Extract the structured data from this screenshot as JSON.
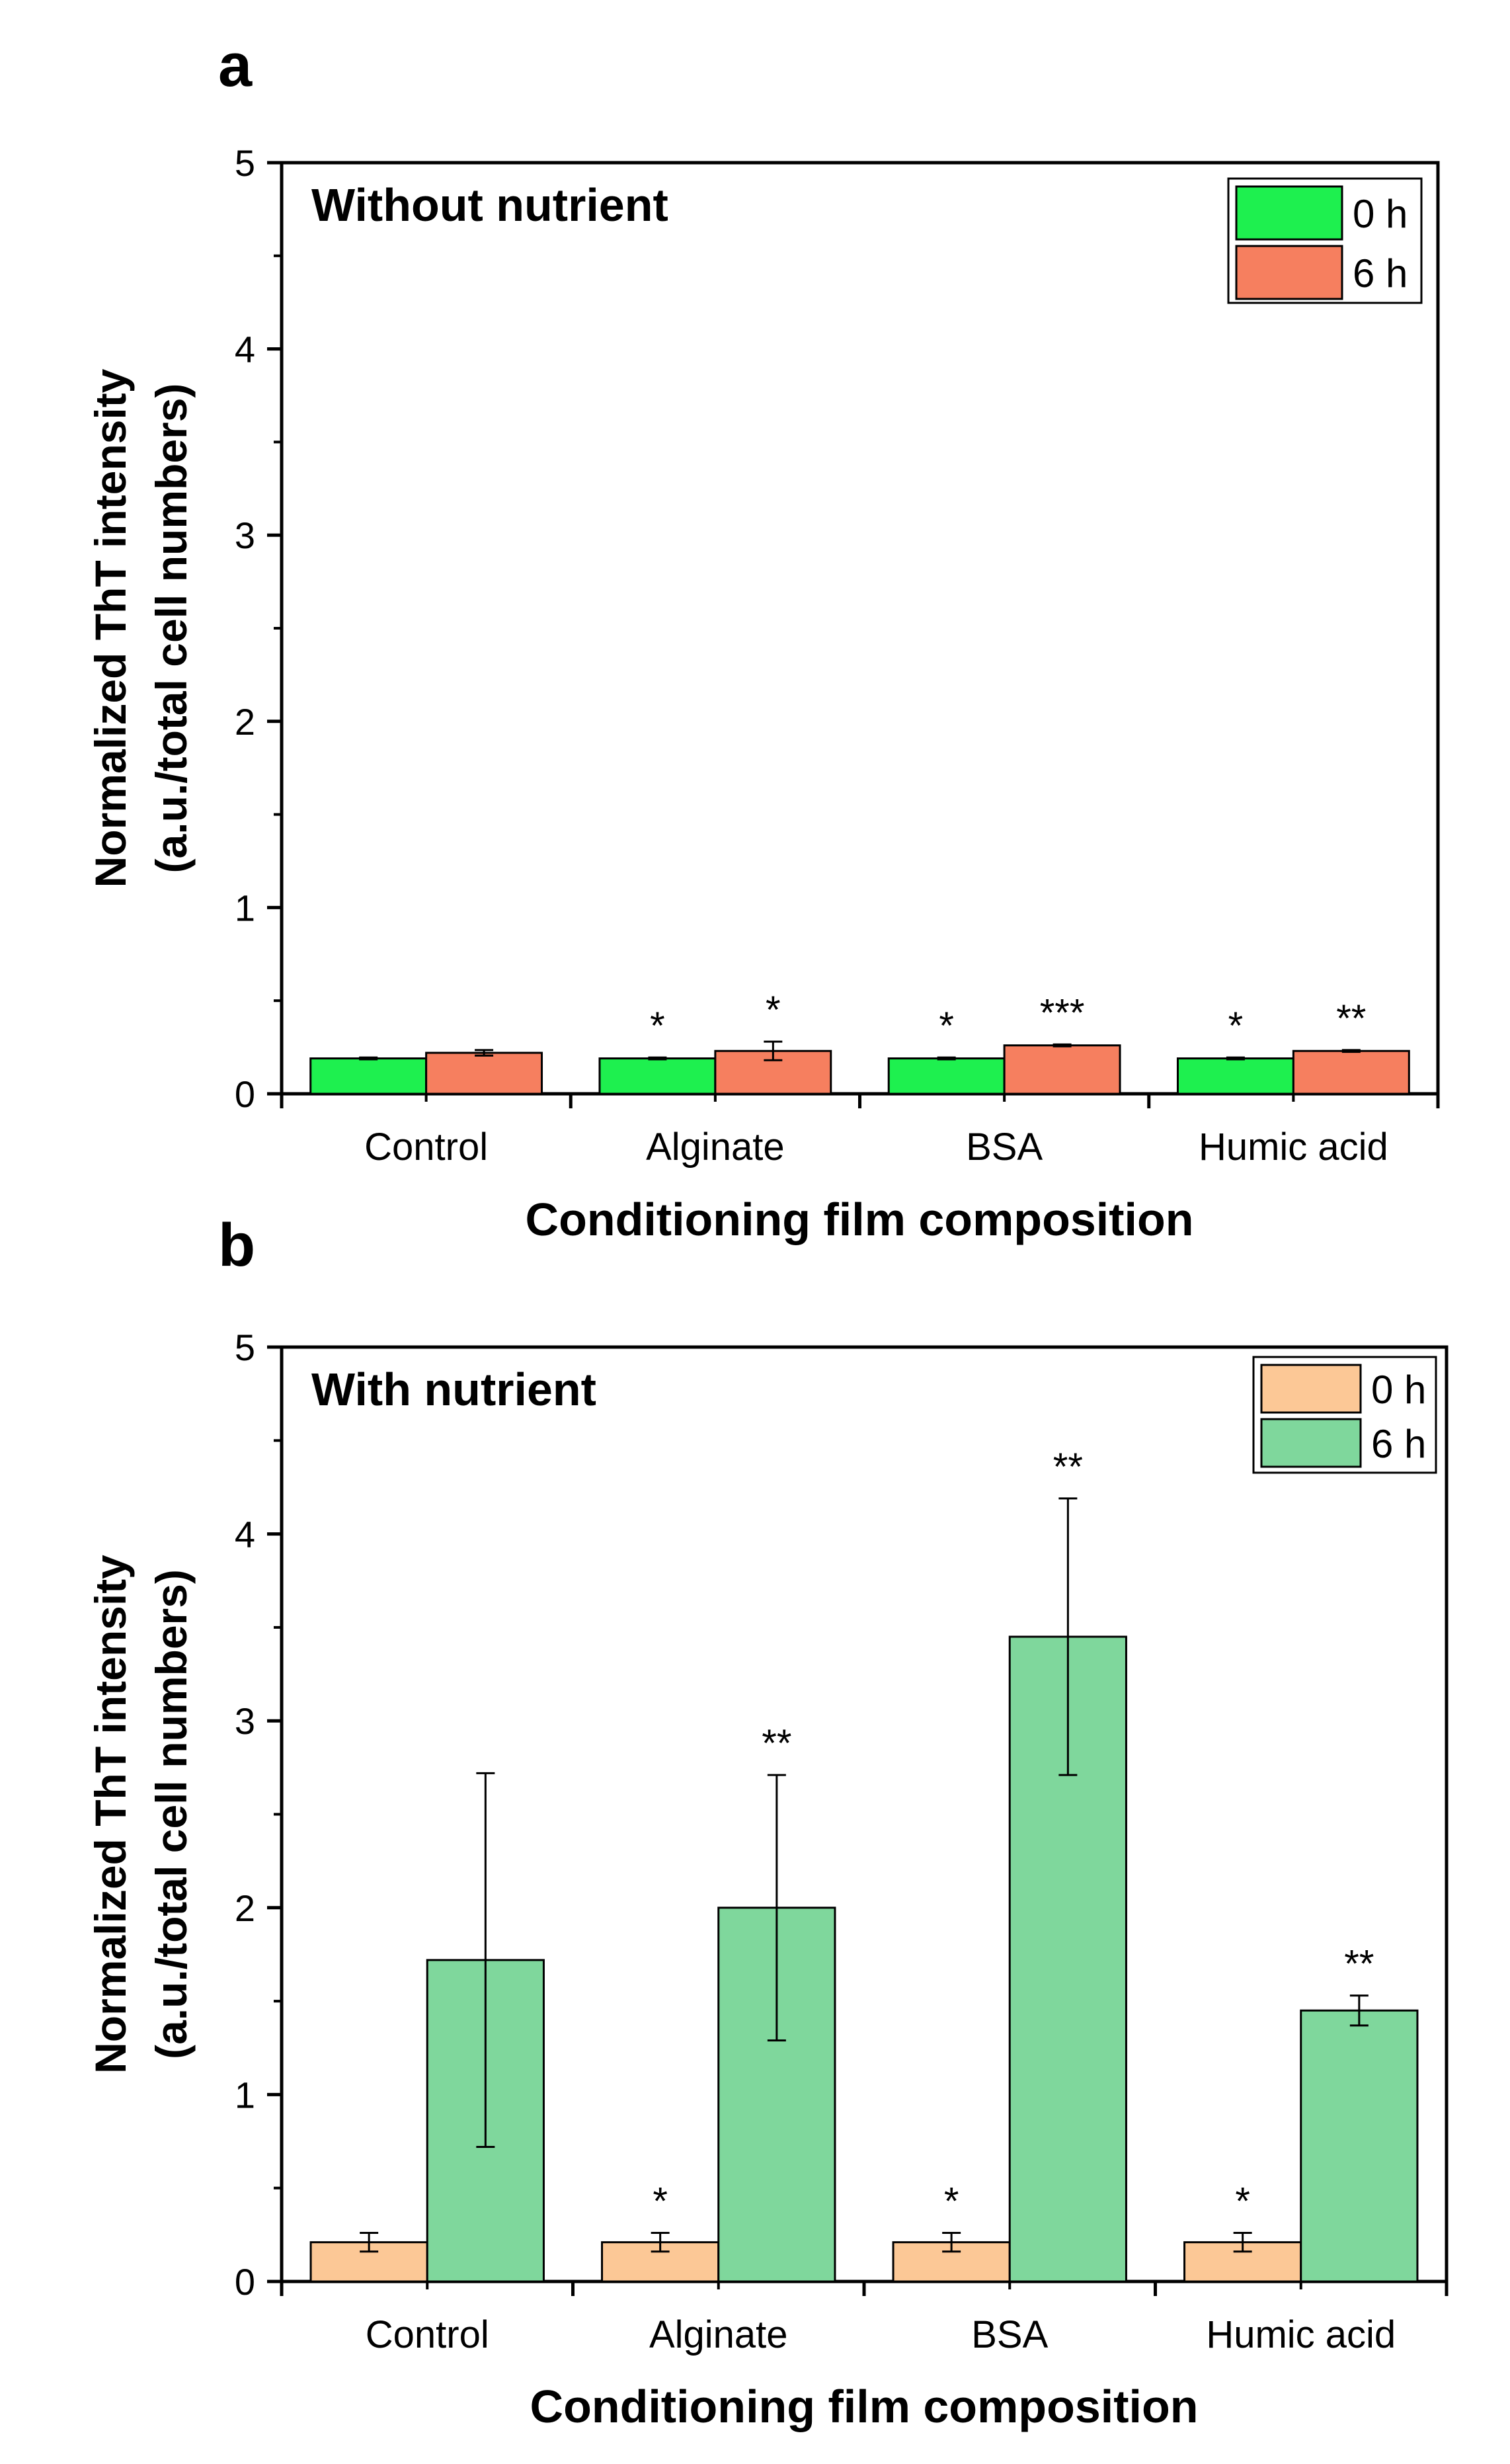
{
  "chart_data": [
    {
      "panel_label": "a",
      "type": "bar",
      "title": "Without nutrient",
      "xlabel": "Conditioning film composition",
      "ylabel_line1": "Normalized ThT intensity",
      "ylabel_line2": "(a.u./total cell numbers)",
      "ylim": [
        0,
        5
      ],
      "yticks": [
        "0",
        "1",
        "2",
        "3",
        "4",
        "5"
      ],
      "categories": [
        "Control",
        "Alginate",
        "BSA",
        "Humic acid"
      ],
      "legend_position": "top-right",
      "series": [
        {
          "name": "0 h",
          "color": "#1ef04f",
          "values": [
            0.19,
            0.19,
            0.19,
            0.19
          ],
          "errors": [
            0.005,
            0.005,
            0.005,
            0.005
          ],
          "annotations": [
            "",
            "*",
            "*",
            "*"
          ]
        },
        {
          "name": "6 h",
          "color": "#f67f5f",
          "values": [
            0.22,
            0.23,
            0.26,
            0.23
          ],
          "errors": [
            0.015,
            0.05,
            0.005,
            0.005
          ],
          "annotations": [
            "",
            "*",
            "***",
            "**"
          ]
        }
      ]
    },
    {
      "panel_label": "b",
      "type": "bar",
      "title": "With nutrient",
      "xlabel": "Conditioning film composition",
      "ylabel_line1": "Normalized ThT intensity",
      "ylabel_line2": "(a.u./total cell numbers)",
      "ylim": [
        0,
        5
      ],
      "yticks": [
        "0",
        "1",
        "2",
        "3",
        "4",
        "5"
      ],
      "categories": [
        "Control",
        "Alginate",
        "BSA",
        "Humic acid"
      ],
      "legend_position": "top-right",
      "series": [
        {
          "name": "0 h",
          "color": "#fcc896",
          "values": [
            0.21,
            0.21,
            0.21,
            0.21
          ],
          "errors": [
            0.05,
            0.05,
            0.05,
            0.05
          ],
          "annotations": [
            "",
            "*",
            "*",
            "*"
          ]
        },
        {
          "name": "6 h",
          "color": "#7fd79c",
          "values": [
            1.72,
            2.0,
            3.45,
            1.45
          ],
          "errors": [
            1.0,
            0.71,
            0.74,
            0.08
          ],
          "annotations": [
            "",
            "**",
            "**",
            "**"
          ]
        }
      ]
    }
  ]
}
